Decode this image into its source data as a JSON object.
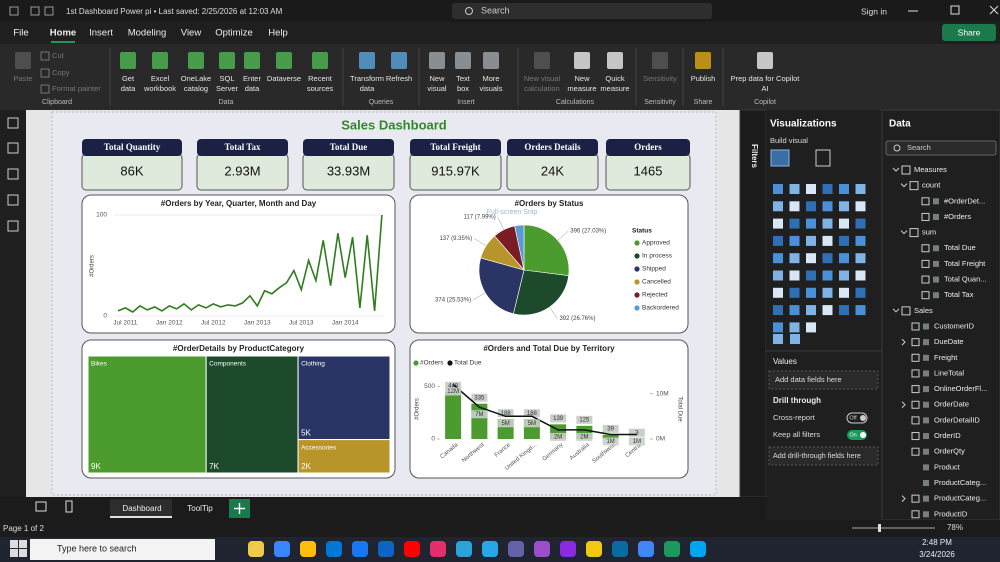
{
  "title_bar": {
    "document": "1st Dashboard Power pi • Last saved: 2/25/2026 at 12:03 AM",
    "search": "Search",
    "sign_in": "Sign in"
  },
  "menu": {
    "tabs": [
      "File",
      "Home",
      "Insert",
      "Modeling",
      "View",
      "Optimize",
      "Help"
    ],
    "share": "Share"
  },
  "ribbon": {
    "groups": [
      {
        "name": "Clipboard",
        "buttons": [
          {
            "lines": [
              "Paste"
            ]
          },
          {
            "lines": [
              "Cut"
            ]
          },
          {
            "lines": [
              "Copy"
            ]
          },
          {
            "lines": [
              "Format painter"
            ]
          }
        ]
      },
      {
        "name": "Data",
        "buttons": [
          {
            "lines": [
              "Get",
              "data"
            ]
          },
          {
            "lines": [
              "Excel",
              "workbook"
            ]
          },
          {
            "lines": [
              "OneLake",
              "catalog"
            ]
          },
          {
            "lines": [
              "SQL",
              "Server"
            ]
          },
          {
            "lines": [
              "Enter",
              "data"
            ]
          },
          {
            "lines": [
              "Dataverse"
            ]
          },
          {
            "lines": [
              "Recent",
              "sources"
            ]
          }
        ]
      },
      {
        "name": "Queries",
        "buttons": [
          {
            "lines": [
              "Transform",
              "data"
            ]
          },
          {
            "lines": [
              "Refresh"
            ]
          }
        ]
      },
      {
        "name": "Insert",
        "buttons": [
          {
            "lines": [
              "New",
              "visual"
            ]
          },
          {
            "lines": [
              "Text",
              "box"
            ]
          },
          {
            "lines": [
              "More",
              "visuals"
            ]
          }
        ]
      },
      {
        "name": "Calculations",
        "buttons": [
          {
            "lines": [
              "New visual",
              "calculation"
            ]
          },
          {
            "lines": [
              "New",
              "measure"
            ]
          },
          {
            "lines": [
              "Quick",
              "measure"
            ]
          }
        ]
      },
      {
        "name": "Sensitivity",
        "buttons": [
          {
            "lines": [
              "Sensitivity"
            ]
          }
        ]
      },
      {
        "name": "Share",
        "buttons": [
          {
            "lines": [
              "Publish"
            ]
          }
        ]
      },
      {
        "name": "Copilot",
        "buttons": [
          {
            "lines": [
              "Prep data for Copilot",
              "AI"
            ]
          }
        ]
      }
    ]
  },
  "report": {
    "title": "Sales Dashboard",
    "snip_tooltip": "Full-screen Snip",
    "kpis": [
      {
        "label": "Total Quantity",
        "value": "86K"
      },
      {
        "label": "Total Tax",
        "value": "2.93M"
      },
      {
        "label": "Total Due",
        "value": "33.93M"
      },
      {
        "label": "Total Freight",
        "value": "915.97K"
      },
      {
        "label": "Orders Details",
        "value": "24K"
      },
      {
        "label": "Orders",
        "value": "1465"
      }
    ],
    "charts": [
      {
        "type": "line",
        "title": "#Orders by Year, Quarter, Month and Day",
        "y_label": "#Orders",
        "color": "#2f7d1f",
        "categories": [
          null,
          "Jul 2011",
          null,
          null,
          null,
          null,
          null,
          "Jan 2012",
          null,
          null,
          null,
          null,
          null,
          "Jul 2012",
          null,
          null,
          null,
          null,
          null,
          "Jan 2013",
          null,
          null,
          null,
          null,
          null,
          "Jul 2013",
          null,
          null,
          null,
          null,
          null,
          "Jan 2014",
          null,
          null,
          null,
          null,
          null
        ],
        "values": [
          5,
          8,
          4,
          10,
          6,
          9,
          5,
          10,
          7,
          12,
          6,
          11,
          8,
          12,
          9,
          11,
          10,
          13,
          20,
          10,
          25,
          22,
          28,
          33,
          45,
          26,
          55,
          35,
          75,
          30,
          82,
          38,
          78,
          8,
          80,
          5,
          100
        ],
        "ylim": [
          0,
          100
        ],
        "yticks": [
          0,
          100
        ]
      },
      {
        "type": "pie",
        "title": "#Orders by Status",
        "legend_title": "Status",
        "categories": [
          "Approved",
          "In process",
          "Shipped",
          "Cancelled",
          "Rejected",
          "Backordered"
        ],
        "values": [
          396,
          392,
          374,
          137,
          117,
          49
        ],
        "value_labels": [
          "396 (27.03%)",
          "392 (26.76%)",
          "374 (25.53%)",
          "137 (9.35%)",
          "117 (7.99%)",
          null
        ],
        "colors": [
          "#4b9b2e",
          "#1c4a2b",
          "#2a3566",
          "#b8952a",
          "#7a1c24",
          "#5b9bd5"
        ]
      },
      {
        "type": "treemap",
        "title": "#OrderDetails by ProductCategory",
        "categories": [
          "Bikes",
          "Components",
          "Clothing",
          "Accessories"
        ],
        "values": [
          9000,
          7000,
          5000,
          2000
        ],
        "value_labels": [
          "9K",
          "7K",
          "5K",
          "2K"
        ],
        "colors": [
          "#4b9b2e",
          "#1c4a2b",
          "#2a3566",
          "#b8952a"
        ]
      },
      {
        "type": "bar-line",
        "title": "#Orders and Total Due by Territory",
        "y_label": "#Orders",
        "y2_label": "Total Due",
        "categories": [
          "Canada",
          "Northwest",
          "France",
          "United Kingd...",
          "Germany",
          "Australia",
          "Southwest",
          "Central"
        ],
        "series": [
          {
            "name": "#Orders",
            "color": "#4b9b2e",
            "values": [
              448,
              335,
              188,
              188,
              139,
              125,
              39,
              3
            ]
          },
          {
            "name": "Total Due",
            "color": "#111111",
            "axis": "y2",
            "values": [
              12,
              7,
              5,
              5,
              2,
              2,
              1,
              1
            ],
            "value_labels": [
              "12M",
              "7M",
              "5M",
              "5M",
              "2M",
              "2M",
              "1M",
              "1M"
            ]
          }
        ],
        "ylim": [
          0,
          560
        ],
        "yticks": [
          0,
          500
        ],
        "y2lim": [
          0,
          13
        ],
        "y2ticks": [
          {
            "value": 0,
            "label": "0M"
          },
          {
            "value": 10,
            "label": "10M"
          }
        ]
      }
    ]
  },
  "filters": "Filters",
  "visualizations": {
    "title": "Visualizations",
    "build": "Build visual",
    "values": "Values",
    "values_placeholder": "Add data fields here",
    "drill_through": "Drill through",
    "cross_report": "Cross-report",
    "cross_report_state": "Off",
    "keep_filters": "Keep all filters",
    "keep_filters_state": "On",
    "drill_placeholder": "Add drill-through fields here"
  },
  "data_pane": {
    "title": "Data",
    "search": "Search",
    "measures": {
      "name": "Measures",
      "folders": [
        {
          "name": "count",
          "fields": [
            "#OrderDet...",
            "#Orders"
          ]
        },
        {
          "name": "sum",
          "fields": [
            "Total Due",
            "Total Freight",
            "Total Quan...",
            "Total Tax"
          ]
        }
      ]
    },
    "sales": {
      "name": "Sales",
      "fields": [
        "CustomerID",
        "DueDate",
        "Freight",
        "LineTotal",
        "OnlineOrderFl...",
        "OrderDate",
        "OrderDetailID",
        "OrderID",
        "OrderQty",
        "Product",
        "ProductCateg...",
        "ProductCateg...",
        "ProductID"
      ]
    }
  },
  "page_tabs": [
    "Dashboard",
    "ToolTip"
  ],
  "status": {
    "page": "Page 1 of 2",
    "zoom": "78%"
  },
  "taskbar": {
    "search": "Type here to search",
    "time": "2:48 PM",
    "date": "3/24/2026"
  }
}
